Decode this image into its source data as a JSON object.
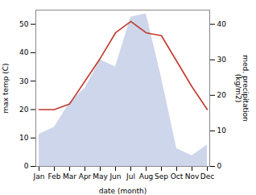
{
  "chart_data": {
    "type": "line",
    "categories": [
      "Jan",
      "Feb",
      "Mar",
      "Apr",
      "May",
      "Jun",
      "Jul",
      "Aug",
      "Sep",
      "Oct",
      "Nov",
      "Dec"
    ],
    "series": [
      {
        "type": "area",
        "axis": "y2",
        "color": "#c5cfe8",
        "values": [
          9,
          11,
          18,
          22,
          30,
          28,
          42,
          43,
          25,
          5,
          3,
          6
        ]
      },
      {
        "type": "line",
        "color": "#c0392b",
        "values": [
          20,
          20,
          22,
          30,
          38,
          47,
          51,
          47,
          46,
          37,
          28,
          20
        ]
      }
    ],
    "xlabel": "date (month)",
    "ylabel": "max temp (C)",
    "y2label": "med. precipitation\n(kg/m2)",
    "ylim": [
      0,
      55
    ],
    "yticks": [
      0,
      10,
      20,
      30,
      40,
      50
    ],
    "y2lim": [
      0,
      44
    ],
    "y2ticks": [
      0,
      10,
      20,
      30,
      40
    ],
    "grid": false
  }
}
